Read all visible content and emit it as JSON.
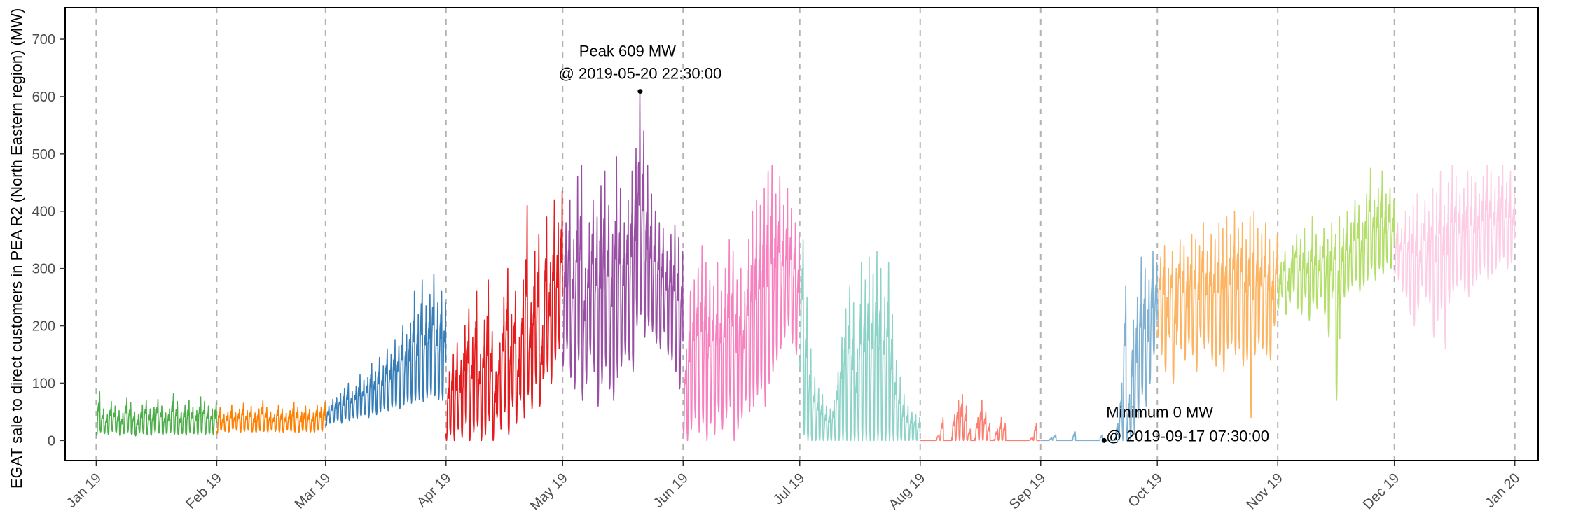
{
  "chart_data": {
    "type": "line",
    "title": "",
    "xlabel": "",
    "ylabel": "EGAT sale to direct customers in PEA R2 (North Eastern region) (MW)",
    "xlim": [
      "2018-12-24",
      "2020-01-07"
    ],
    "ylim": [
      -35,
      755
    ],
    "yticks": [
      0,
      100,
      200,
      300,
      400,
      500,
      600,
      700
    ],
    "xticks": [
      {
        "date": "2019-01-01",
        "label": "Jan 19"
      },
      {
        "date": "2019-02-01",
        "label": "Feb 19"
      },
      {
        "date": "2019-03-01",
        "label": "Mar 19"
      },
      {
        "date": "2019-04-01",
        "label": "Apr 19"
      },
      {
        "date": "2019-05-01",
        "label": "May 19"
      },
      {
        "date": "2019-06-01",
        "label": "Jun 19"
      },
      {
        "date": "2019-07-01",
        "label": "Jul 19"
      },
      {
        "date": "2019-08-01",
        "label": "Aug 19"
      },
      {
        "date": "2019-09-01",
        "label": "Sep 19"
      },
      {
        "date": "2019-10-01",
        "label": "Oct 19"
      },
      {
        "date": "2019-11-01",
        "label": "Nov 19"
      },
      {
        "date": "2019-12-01",
        "label": "Dec 19"
      },
      {
        "date": "2020-01-01",
        "label": "Jan 20"
      }
    ],
    "grid": {
      "vertical": "dashed at month ticks",
      "horizontal": false
    },
    "legend": "none",
    "series": [
      {
        "month": "2019-01",
        "color": "#4DAF4A",
        "daily_peak": [
          85,
          55,
          45,
          68,
          60,
          52,
          48,
          75,
          66,
          50,
          45,
          62,
          70,
          55,
          58,
          72,
          60,
          48,
          55,
          82,
          68,
          50,
          62,
          70,
          58,
          52,
          76,
          68,
          60,
          55,
          66
        ],
        "daily_low": [
          8,
          15,
          12,
          10,
          16,
          14,
          8,
          12,
          15,
          10,
          8,
          14,
          12,
          10,
          9,
          15,
          13,
          10,
          12,
          14,
          11,
          10,
          12,
          9,
          14,
          12,
          10,
          13,
          11,
          12,
          10
        ]
      },
      {
        "month": "2019-02",
        "color": "#FF7F00",
        "daily_peak": [
          58,
          45,
          50,
          62,
          48,
          55,
          65,
          52,
          60,
          48,
          55,
          70,
          58,
          50,
          45,
          62,
          55,
          48,
          52,
          66,
          58,
          50,
          60,
          54,
          48,
          62,
          58,
          66
        ],
        "daily_low": [
          12,
          18,
          16,
          15,
          20,
          18,
          14,
          16,
          18,
          15,
          14,
          17,
          16,
          15,
          18,
          16,
          15,
          14,
          18,
          16,
          15,
          14,
          17,
          16,
          15,
          14,
          18,
          16
        ]
      },
      {
        "month": "2019-03",
        "color": "#377EB8",
        "daily_peak": [
          60,
          72,
          75,
          82,
          90,
          100,
          85,
          95,
          115,
          105,
          110,
          135,
          120,
          145,
          130,
          160,
          150,
          175,
          165,
          200,
          185,
          205,
          260,
          220,
          280,
          235,
          255,
          290,
          240,
          260,
          240
        ],
        "daily_low": [
          25,
          30,
          32,
          35,
          30,
          38,
          34,
          40,
          38,
          42,
          45,
          40,
          48,
          45,
          50,
          55,
          52,
          58,
          60,
          55,
          62,
          68,
          65,
          70,
          72,
          68,
          75,
          80,
          78,
          72,
          70
        ]
      },
      {
        "month": "2019-04",
        "color": "#E41A1C",
        "daily_peak": [
          120,
          150,
          170,
          140,
          200,
          230,
          180,
          260,
          150,
          210,
          280,
          190,
          120,
          170,
          250,
          300,
          220,
          260,
          180,
          280,
          410,
          240,
          330,
          360,
          200,
          390,
          310,
          420,
          380,
          435
        ],
        "daily_low": [
          0,
          10,
          0,
          20,
          5,
          30,
          0,
          15,
          25,
          0,
          10,
          35,
          0,
          40,
          20,
          50,
          10,
          60,
          30,
          70,
          40,
          80,
          55,
          100,
          60,
          110,
          120,
          100,
          140,
          160
        ]
      },
      {
        "month": "2019-05",
        "color": "#984EA3",
        "daily_peak": [
          380,
          420,
          350,
          460,
          480,
          300,
          380,
          420,
          390,
          445,
          470,
          410,
          360,
          495,
          440,
          380,
          420,
          470,
          510,
          609,
          540,
          480,
          430,
          400,
          380,
          370,
          330,
          360,
          375,
          355,
          330
        ],
        "daily_low": [
          130,
          160,
          110,
          90,
          140,
          70,
          100,
          150,
          120,
          60,
          100,
          130,
          90,
          70,
          110,
          130,
          150,
          140,
          120,
          200,
          220,
          180,
          200,
          190,
          170,
          160,
          190,
          150,
          140,
          120,
          90
        ]
      },
      {
        "month": "2019-06",
        "color": "#F781BF",
        "daily_peak": [
          160,
          260,
          280,
          300,
          340,
          310,
          280,
          270,
          310,
          260,
          300,
          350,
          330,
          280,
          300,
          260,
          350,
          400,
          420,
          410,
          440,
          470,
          480,
          430,
          460,
          410,
          440,
          405,
          380,
          360
        ],
        "daily_low": [
          10,
          0,
          20,
          40,
          15,
          30,
          0,
          30,
          10,
          50,
          20,
          40,
          60,
          0,
          20,
          40,
          70,
          50,
          60,
          80,
          90,
          60,
          100,
          120,
          140,
          160,
          180,
          200,
          170,
          150
        ]
      },
      {
        "month": "2019-07",
        "color": "#8DD3C7",
        "daily_peak": [
          350,
          250,
          160,
          110,
          90,
          80,
          60,
          55,
          70,
          120,
          180,
          230,
          270,
          240,
          160,
          310,
          280,
          320,
          290,
          330,
          300,
          250,
          310,
          220,
          140,
          110,
          80,
          60,
          50,
          45,
          40
        ],
        "daily_low": [
          120,
          10,
          0,
          0,
          0,
          0,
          0,
          0,
          0,
          0,
          0,
          0,
          0,
          0,
          0,
          0,
          0,
          0,
          0,
          0,
          0,
          0,
          0,
          0,
          0,
          0,
          0,
          0,
          0,
          0,
          0
        ]
      },
      {
        "month": "2019-08",
        "color": "#FB8072",
        "daily_peak": [
          0,
          0,
          0,
          0,
          10,
          40,
          0,
          0,
          45,
          70,
          80,
          60,
          20,
          0,
          40,
          70,
          50,
          30,
          0,
          20,
          40,
          30,
          0,
          0,
          0,
          0,
          0,
          0,
          5,
          30,
          0
        ],
        "daily_low": [
          0,
          0,
          0,
          0,
          0,
          0,
          0,
          0,
          0,
          0,
          0,
          0,
          0,
          0,
          0,
          0,
          0,
          0,
          0,
          0,
          0,
          0,
          0,
          0,
          0,
          0,
          0,
          0,
          0,
          0,
          0
        ]
      },
      {
        "month": "2019-09",
        "color": "#80B1D3",
        "daily_peak": [
          0,
          0,
          5,
          10,
          0,
          0,
          0,
          0,
          15,
          0,
          0,
          0,
          0,
          0,
          0,
          10,
          0,
          0,
          0,
          30,
          100,
          270,
          80,
          210,
          250,
          320,
          300,
          280,
          330,
          310
        ],
        "daily_low": [
          0,
          0,
          0,
          0,
          0,
          0,
          0,
          0,
          0,
          0,
          0,
          0,
          0,
          0,
          0,
          0,
          0,
          0,
          0,
          0,
          0,
          0,
          0,
          0,
          10,
          40,
          80,
          60,
          100,
          150
        ]
      },
      {
        "month": "2019-10",
        "color": "#FDB462",
        "daily_peak": [
          320,
          340,
          300,
          330,
          300,
          350,
          340,
          320,
          360,
          350,
          340,
          380,
          330,
          360,
          350,
          380,
          370,
          390,
          360,
          400,
          370,
          380,
          350,
          390,
          400,
          370,
          360,
          380,
          350,
          330,
          360
        ],
        "daily_low": [
          180,
          150,
          120,
          180,
          100,
          190,
          160,
          140,
          170,
          150,
          120,
          180,
          160,
          170,
          140,
          130,
          150,
          120,
          160,
          170,
          150,
          160,
          130,
          140,
          40,
          150,
          170,
          160,
          150,
          140,
          200
        ]
      },
      {
        "month": "2019-11",
        "color": "#B3DE69",
        "daily_peak": [
          310,
          330,
          300,
          340,
          360,
          350,
          370,
          330,
          390,
          360,
          340,
          370,
          350,
          380,
          360,
          390,
          370,
          400,
          380,
          420,
          410,
          380,
          430,
          475,
          420,
          440,
          470,
          430,
          440,
          420
        ],
        "daily_low": [
          230,
          250,
          220,
          240,
          260,
          230,
          220,
          250,
          210,
          240,
          230,
          250,
          220,
          180,
          260,
          70,
          240,
          250,
          260,
          270,
          280,
          260,
          270,
          280,
          300,
          280,
          300,
          290,
          310,
          300
        ]
      },
      {
        "month": "2019-12",
        "color": "#FCCDE5",
        "daily_peak": [
          380,
          370,
          400,
          390,
          410,
          430,
          380,
          420,
          400,
          440,
          430,
          470,
          410,
          450,
          480,
          460,
          430,
          440,
          470,
          460,
          450,
          430,
          460,
          480,
          470,
          440,
          460,
          480,
          450,
          470,
          430
        ],
        "daily_low": [
          290,
          280,
          260,
          250,
          220,
          200,
          230,
          270,
          250,
          240,
          180,
          210,
          230,
          160,
          240,
          260,
          270,
          280,
          260,
          250,
          270,
          280,
          290,
          300,
          280,
          290,
          300,
          310,
          320,
          300,
          310
        ]
      }
    ],
    "annotations": [
      {
        "name": "peak",
        "date": "2019-05-20 22:30:00",
        "value": 609,
        "line1": "Peak 609 MW",
        "line2": "@ 2019-05-20 22:30:00"
      },
      {
        "name": "minimum",
        "date": "2019-09-17 07:30:00",
        "value": 0,
        "line1": "Minimum 0 MW",
        "line2": "@ 2019-09-17 07:30:00"
      }
    ]
  }
}
